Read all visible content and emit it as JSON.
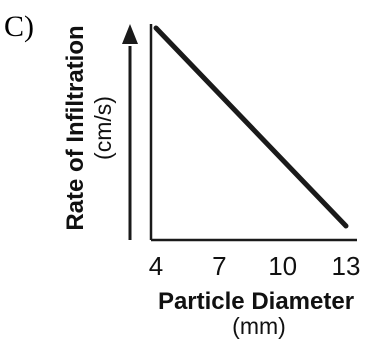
{
  "panel_label": "C)",
  "chart_data": {
    "type": "line",
    "title": "",
    "xlabel": "Particle Diameter",
    "xlabel_unit": "(mm)",
    "ylabel": "Rate of Infiltration",
    "ylabel_unit": "(cm/s)",
    "x_ticks": [
      "4",
      "7",
      "10",
      "13"
    ],
    "xlim": [
      4,
      13
    ],
    "y_tick_labels": "none",
    "y_axis_arrow": true,
    "grid": false,
    "series": [
      {
        "x": [
          4,
          13
        ],
        "y": [
          "high",
          "low"
        ],
        "trend": "decreasing linear",
        "color": "#1a1a1a"
      }
    ]
  }
}
